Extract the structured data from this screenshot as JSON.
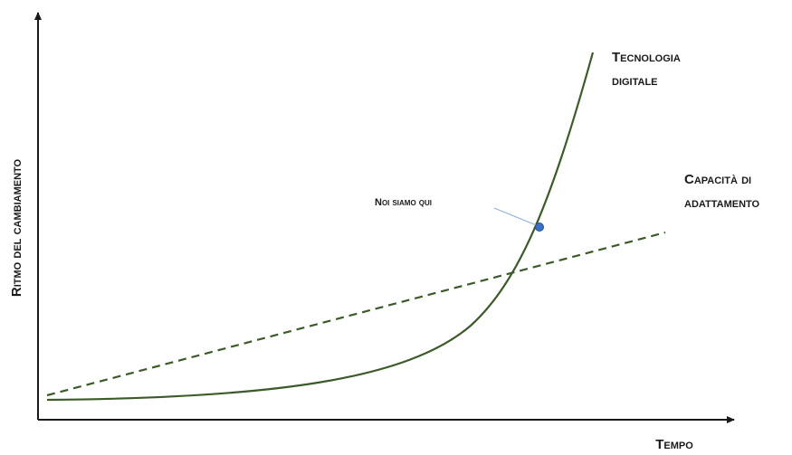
{
  "axes": {
    "x_label": "Tempo",
    "y_label": "Ritmo del cambiamento"
  },
  "curves": {
    "digital": {
      "label_line1": "Tecnologia",
      "label_line2": "digitale",
      "color": "#3d5a2a",
      "style": "solid"
    },
    "adaptation": {
      "label_line1": "Capacità di",
      "label_line2": "adattamento",
      "color": "#3d5a2a",
      "style": "dashed"
    }
  },
  "annotation": {
    "text": "Noi siamo qui",
    "marker_color": "#3a6fc4",
    "leader_color": "#8fb0d8"
  },
  "colors": {
    "axis": "#1a1a1a",
    "text": "#1a1a1a"
  }
}
